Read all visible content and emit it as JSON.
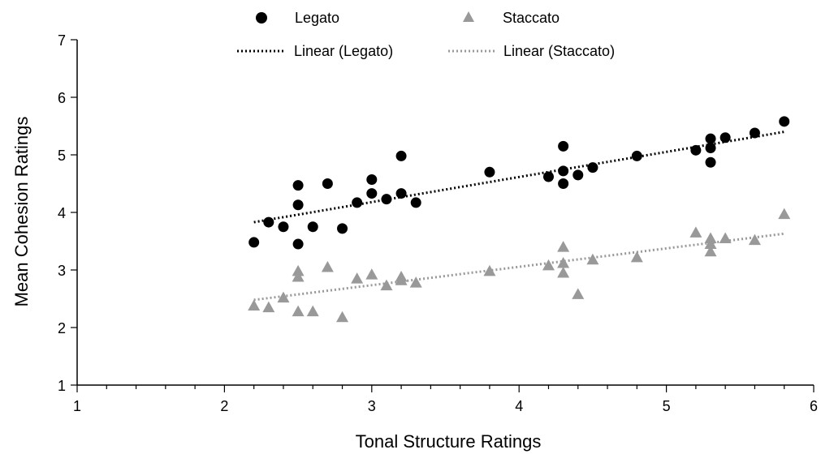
{
  "chart_data": {
    "type": "scatter",
    "title": "",
    "xlabel": "Tonal Structure Ratings",
    "ylabel": "Mean Cohesion Ratings",
    "xlim": [
      1,
      6
    ],
    "ylim": [
      1,
      7
    ],
    "xticks": [
      "1",
      "2",
      "3",
      "4",
      "5",
      "6"
    ],
    "yticks": [
      "1",
      "2",
      "3",
      "4",
      "5",
      "6",
      "7"
    ],
    "grid": false,
    "legend_position": "top",
    "series": [
      {
        "name": "Legato",
        "marker": "circle",
        "color": "#000000",
        "points": [
          [
            2.2,
            3.48
          ],
          [
            2.3,
            3.83
          ],
          [
            2.4,
            3.75
          ],
          [
            2.5,
            4.47
          ],
          [
            2.5,
            4.13
          ],
          [
            2.5,
            3.45
          ],
          [
            2.6,
            3.75
          ],
          [
            2.7,
            4.5
          ],
          [
            2.8,
            3.72
          ],
          [
            2.9,
            4.17
          ],
          [
            3.0,
            4.57
          ],
          [
            3.0,
            4.33
          ],
          [
            3.1,
            4.23
          ],
          [
            3.2,
            4.98
          ],
          [
            3.2,
            4.33
          ],
          [
            3.3,
            4.17
          ],
          [
            3.8,
            4.7
          ],
          [
            4.2,
            4.62
          ],
          [
            4.3,
            5.15
          ],
          [
            4.3,
            4.72
          ],
          [
            4.3,
            4.5
          ],
          [
            4.4,
            4.65
          ],
          [
            4.5,
            4.78
          ],
          [
            4.8,
            4.98
          ],
          [
            5.2,
            5.08
          ],
          [
            5.3,
            5.28
          ],
          [
            5.3,
            5.12
          ],
          [
            5.3,
            4.87
          ],
          [
            5.4,
            5.3
          ],
          [
            5.6,
            5.38
          ],
          [
            5.8,
            5.58
          ]
        ]
      },
      {
        "name": "Staccato",
        "marker": "triangle",
        "color": "#999999",
        "points": [
          [
            2.2,
            2.38
          ],
          [
            2.3,
            2.35
          ],
          [
            2.4,
            2.52
          ],
          [
            2.5,
            2.98
          ],
          [
            2.5,
            2.88
          ],
          [
            2.5,
            2.28
          ],
          [
            2.6,
            2.28
          ],
          [
            2.7,
            3.05
          ],
          [
            2.8,
            2.18
          ],
          [
            2.9,
            2.85
          ],
          [
            3.0,
            2.92
          ],
          [
            3.1,
            2.73
          ],
          [
            3.2,
            2.88
          ],
          [
            3.2,
            2.82
          ],
          [
            3.3,
            2.78
          ],
          [
            3.8,
            2.98
          ],
          [
            4.2,
            3.08
          ],
          [
            4.3,
            3.4
          ],
          [
            4.3,
            3.12
          ],
          [
            4.3,
            2.95
          ],
          [
            4.4,
            2.58
          ],
          [
            4.5,
            3.18
          ],
          [
            4.8,
            3.22
          ],
          [
            5.2,
            3.65
          ],
          [
            5.3,
            3.55
          ],
          [
            5.3,
            3.45
          ],
          [
            5.3,
            3.32
          ],
          [
            5.4,
            3.55
          ],
          [
            5.6,
            3.52
          ],
          [
            5.8,
            3.97
          ]
        ]
      }
    ],
    "trendlines": [
      {
        "name": "Linear (Legato)",
        "color": "#000000",
        "x": [
          2.2,
          5.8
        ],
        "y": [
          3.83,
          5.4
        ]
      },
      {
        "name": "Linear (Staccato)",
        "color": "#999999",
        "x": [
          2.2,
          5.8
        ],
        "y": [
          2.48,
          3.63
        ]
      }
    ]
  }
}
